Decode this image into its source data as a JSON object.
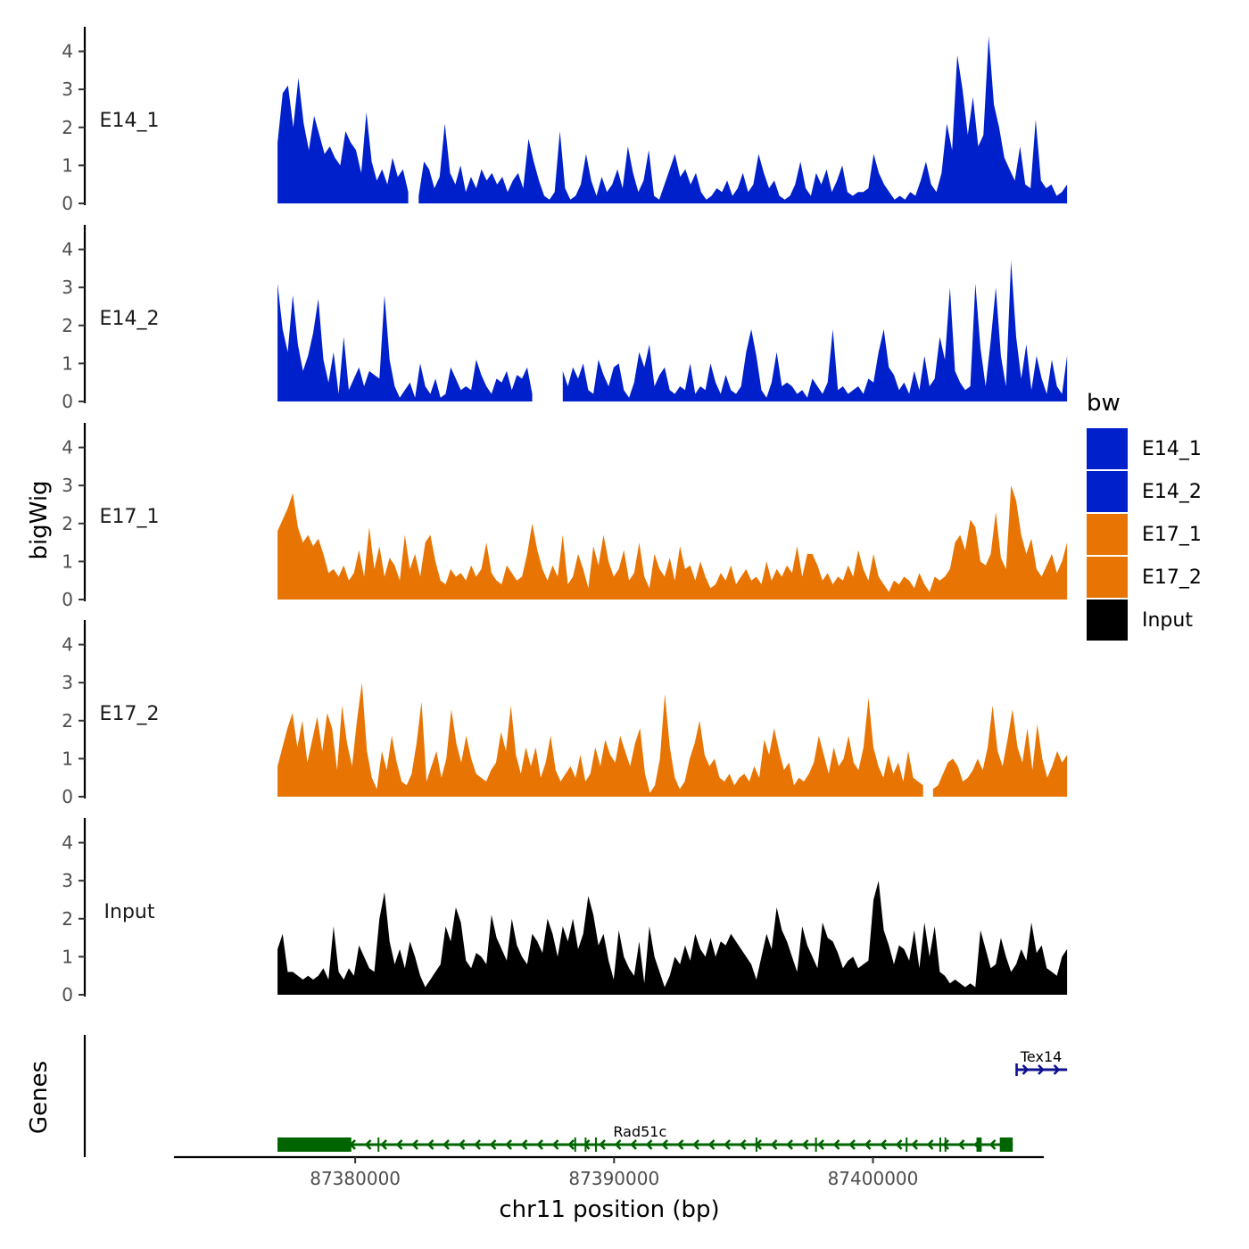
{
  "chart_data": {
    "type": "area",
    "ylabel": "bigWig",
    "xlabel": "chr11 position (bp)",
    "genes_label": "Genes",
    "ylim": [
      0,
      4.6
    ],
    "y_ticks": [
      "0",
      "1",
      "2",
      "3",
      "4"
    ],
    "xlim": [
      87373000,
      87406600
    ],
    "x_ticks": [
      {
        "value": 87380000,
        "label": "87380000"
      },
      {
        "value": 87390000,
        "label": "87390000"
      },
      {
        "value": 87400000,
        "label": "87400000"
      }
    ],
    "track_range": [
      87377000,
      87407500
    ],
    "legend": {
      "title": "bw",
      "entries": [
        {
          "name": "E14_1",
          "color": "#0020CC"
        },
        {
          "name": "E14_2",
          "color": "#0020CC"
        },
        {
          "name": "E17_1",
          "color": "#E87503"
        },
        {
          "name": "E17_2",
          "color": "#E87503"
        },
        {
          "name": "Input",
          "color": "#000000"
        }
      ]
    },
    "series": [
      {
        "name": "E14_1",
        "color": "#0020CC",
        "values": [
          1.6,
          2.9,
          3.1,
          2.0,
          3.3,
          2.1,
          1.4,
          2.3,
          1.8,
          1.3,
          1.5,
          1.2,
          1.0,
          1.9,
          1.6,
          1.4,
          0.8,
          2.4,
          1.1,
          0.6,
          0.9,
          0.5,
          1.2,
          0.7,
          0.9,
          0.3,
          null,
          0.2,
          1.1,
          0.9,
          0.4,
          0.7,
          2.1,
          0.8,
          0.5,
          1.0,
          0.3,
          0.7,
          0.4,
          0.9,
          0.6,
          0.8,
          0.5,
          0.7,
          0.3,
          0.6,
          0.8,
          0.4,
          1.7,
          1.1,
          0.6,
          0.2,
          0.1,
          0.3,
          1.9,
          0.4,
          0.1,
          0.2,
          0.5,
          1.3,
          0.6,
          0.2,
          0.7,
          0.3,
          0.5,
          0.9,
          0.4,
          1.5,
          0.8,
          0.3,
          0.6,
          1.4,
          0.2,
          0.1,
          0.5,
          0.9,
          1.3,
          0.7,
          0.9,
          0.5,
          0.8,
          0.3,
          0.1,
          0.2,
          0.4,
          0.3,
          0.6,
          0.2,
          0.4,
          0.8,
          0.3,
          0.5,
          1.3,
          0.8,
          0.4,
          0.6,
          0.2,
          0.1,
          0.2,
          0.5,
          1.1,
          0.4,
          0.2,
          0.8,
          0.5,
          0.9,
          0.3,
          0.6,
          1.0,
          0.3,
          0.2,
          0.3,
          0.3,
          0.4,
          1.3,
          0.8,
          0.5,
          0.3,
          0.1,
          0.2,
          0.1,
          0.3,
          0.2,
          0.6,
          1.1,
          0.5,
          0.3,
          0.8,
          2.1,
          1.4,
          3.9,
          3.0,
          1.8,
          2.8,
          1.5,
          1.8,
          4.4,
          2.6,
          2.0,
          1.2,
          0.9,
          0.6,
          1.5,
          0.5,
          0.4,
          2.2,
          0.6,
          0.4,
          0.5,
          0.2,
          0.3,
          0.5
        ]
      },
      {
        "name": "E14_2",
        "color": "#0020CC",
        "values": [
          3.1,
          1.9,
          1.3,
          2.8,
          1.5,
          0.8,
          1.2,
          1.8,
          2.7,
          1.1,
          0.5,
          1.3,
          0.2,
          1.7,
          0.3,
          0.6,
          0.9,
          0.4,
          0.8,
          0.7,
          0.6,
          2.8,
          1.1,
          0.4,
          0.1,
          0.3,
          0.5,
          0.1,
          1.0,
          0.4,
          0.2,
          0.6,
          0.1,
          0.2,
          0.9,
          0.6,
          0.3,
          0.4,
          0.3,
          1.1,
          0.7,
          0.4,
          0.2,
          0.6,
          0.5,
          0.8,
          0.3,
          0.7,
          0.6,
          0.9,
          0.2,
          null,
          null,
          null,
          null,
          null,
          0.8,
          0.4,
          0.9,
          0.6,
          1.0,
          0.3,
          0.2,
          1.1,
          0.7,
          0.4,
          0.9,
          1.0,
          0.3,
          0.1,
          0.5,
          1.3,
          0.9,
          1.5,
          0.4,
          0.7,
          0.9,
          0.3,
          0.2,
          0.4,
          0.3,
          1.0,
          0.2,
          0.4,
          0.3,
          1.0,
          0.5,
          0.2,
          0.7,
          0.3,
          0.2,
          0.4,
          1.3,
          1.9,
          1.2,
          0.3,
          0.1,
          0.5,
          1.3,
          0.4,
          0.5,
          0.4,
          0.2,
          0.3,
          0.1,
          0.6,
          0.4,
          0.2,
          0.5,
          1.9,
          0.3,
          0.4,
          0.2,
          0.3,
          0.4,
          0.2,
          0.6,
          0.5,
          1.3,
          1.9,
          0.9,
          0.7,
          0.3,
          0.5,
          0.2,
          0.8,
          0.3,
          1.2,
          0.4,
          0.6,
          1.7,
          1.1,
          3.0,
          0.8,
          0.5,
          0.3,
          0.4,
          3.1,
          1.4,
          0.4,
          1.6,
          3.0,
          1.2,
          0.4,
          3.7,
          1.7,
          0.6,
          1.5,
          0.3,
          1.2,
          0.6,
          0.2,
          1.1,
          0.4,
          0.2,
          1.2
        ]
      },
      {
        "name": "E17_1",
        "color": "#E87503",
        "values": [
          1.8,
          2.1,
          2.4,
          2.8,
          1.9,
          1.5,
          1.7,
          1.4,
          1.6,
          1.2,
          0.7,
          0.8,
          0.6,
          0.9,
          0.5,
          0.7,
          1.3,
          0.6,
          1.9,
          0.8,
          1.4,
          0.6,
          1.1,
          0.9,
          0.5,
          1.7,
          0.8,
          1.2,
          0.6,
          1.5,
          1.7,
          1.0,
          0.5,
          0.4,
          0.8,
          0.6,
          0.7,
          0.5,
          0.9,
          0.6,
          0.8,
          1.5,
          0.7,
          0.5,
          0.4,
          0.9,
          0.7,
          0.5,
          0.6,
          1.2,
          2.0,
          1.3,
          0.8,
          0.5,
          0.9,
          0.6,
          1.7,
          0.4,
          0.6,
          1.2,
          0.8,
          0.3,
          1.4,
          0.9,
          1.7,
          1.0,
          0.6,
          0.8,
          1.3,
          0.5,
          0.7,
          1.5,
          0.6,
          0.3,
          1.2,
          0.8,
          0.6,
          1.1,
          0.5,
          1.4,
          0.8,
          0.9,
          0.5,
          1.0,
          0.6,
          0.3,
          0.4,
          0.7,
          0.5,
          0.9,
          0.4,
          0.6,
          0.8,
          0.5,
          0.6,
          0.4,
          1.0,
          0.5,
          0.8,
          0.6,
          0.9,
          0.7,
          1.4,
          0.6,
          1.2,
          1.2,
          0.9,
          0.5,
          0.7,
          0.4,
          0.6,
          0.5,
          0.9,
          0.6,
          1.3,
          0.8,
          0.5,
          1.2,
          0.6,
          0.4,
          0.2,
          0.5,
          0.4,
          0.6,
          0.5,
          0.3,
          0.7,
          0.4,
          0.2,
          0.6,
          0.5,
          0.6,
          0.8,
          1.5,
          1.7,
          1.3,
          2.1,
          1.9,
          1.0,
          0.9,
          1.2,
          2.3,
          1.1,
          0.8,
          3.0,
          2.6,
          1.7,
          1.2,
          1.6,
          0.8,
          0.6,
          0.9,
          1.2,
          0.7,
          1.0,
          1.5
        ]
      },
      {
        "name": "E17_2",
        "color": "#E87503",
        "values": [
          0.8,
          1.3,
          1.8,
          2.2,
          1.3,
          2.0,
          0.9,
          1.5,
          2.1,
          1.2,
          2.2,
          1.8,
          0.7,
          2.4,
          1.4,
          0.8,
          2.0,
          3.0,
          1.2,
          0.5,
          0.2,
          1.2,
          0.7,
          1.6,
          0.9,
          0.4,
          0.3,
          0.6,
          1.4,
          2.5,
          0.4,
          0.8,
          1.2,
          0.5,
          1.0,
          2.3,
          1.4,
          0.9,
          1.6,
          1.0,
          0.6,
          0.5,
          0.4,
          0.7,
          0.9,
          1.7,
          1.2,
          2.4,
          1.1,
          0.6,
          1.3,
          0.8,
          1.3,
          0.5,
          0.9,
          1.6,
          0.7,
          0.4,
          0.6,
          0.8,
          0.5,
          1.1,
          0.4,
          0.6,
          1.3,
          0.8,
          1.5,
          1.1,
          0.9,
          1.6,
          1.2,
          0.8,
          1.4,
          1.8,
          0.6,
          0.1,
          0.3,
          1.0,
          2.7,
          1.3,
          0.5,
          0.2,
          0.4,
          1.0,
          1.4,
          2.0,
          1.1,
          0.8,
          1.0,
          0.5,
          0.4,
          0.6,
          0.3,
          0.5,
          0.6,
          0.4,
          0.8,
          0.5,
          1.5,
          1.1,
          1.8,
          1.2,
          0.7,
          0.9,
          0.3,
          0.5,
          0.4,
          0.6,
          0.9,
          1.6,
          1.1,
          0.6,
          1.3,
          0.8,
          1.0,
          1.6,
          0.9,
          0.7,
          1.3,
          2.6,
          1.3,
          0.8,
          0.5,
          1.1,
          0.6,
          0.9,
          0.4,
          1.2,
          0.5,
          0.4,
          0.3,
          null,
          0.2,
          0.3,
          0.6,
          0.9,
          1.0,
          0.8,
          0.4,
          0.5,
          0.7,
          1.0,
          0.7,
          1.3,
          2.4,
          1.2,
          0.8,
          1.5,
          2.3,
          1.3,
          0.9,
          1.8,
          0.7,
          1.9,
          1.0,
          0.5,
          0.8,
          1.2,
          0.9,
          1.1
        ]
      },
      {
        "name": "Input",
        "color": "#000000",
        "values": [
          1.2,
          1.6,
          0.6,
          0.6,
          0.5,
          0.4,
          0.5,
          0.4,
          0.5,
          0.7,
          0.4,
          1.8,
          0.6,
          0.4,
          0.7,
          0.5,
          1.3,
          1.0,
          0.7,
          0.6,
          2.0,
          2.7,
          1.4,
          0.8,
          1.2,
          0.7,
          1.4,
          1.0,
          0.5,
          0.2,
          0.4,
          0.6,
          0.8,
          1.8,
          1.4,
          2.3,
          1.9,
          0.9,
          0.7,
          1.1,
          1.0,
          0.8,
          2.1,
          1.5,
          1.2,
          0.9,
          2.0,
          1.3,
          1.0,
          0.8,
          1.6,
          1.4,
          1.1,
          2.0,
          1.6,
          1.0,
          1.8,
          1.4,
          2.0,
          1.2,
          1.6,
          2.6,
          2.1,
          1.3,
          1.6,
          0.9,
          0.4,
          1.7,
          1.0,
          0.7,
          0.5,
          1.4,
          0.3,
          1.8,
          1.0,
          0.6,
          0.2,
          0.5,
          1.0,
          0.8,
          1.3,
          0.9,
          1.6,
          1.2,
          1.0,
          1.5,
          1.0,
          1.4,
          1.3,
          1.6,
          1.4,
          1.2,
          1.0,
          0.8,
          0.4,
          1.0,
          1.6,
          1.2,
          2.3,
          1.7,
          1.4,
          1.0,
          0.6,
          1.8,
          1.3,
          1.0,
          0.7,
          1.9,
          1.5,
          1.4,
          1.1,
          0.7,
          0.9,
          1.0,
          0.7,
          0.8,
          0.9,
          2.5,
          3.0,
          1.7,
          1.3,
          0.8,
          1.3,
          1.2,
          0.9,
          1.7,
          0.7,
          1.9,
          1.0,
          1.8,
          0.6,
          0.5,
          0.3,
          0.4,
          0.3,
          0.2,
          0.3,
          0.2,
          1.7,
          1.2,
          0.7,
          0.8,
          1.5,
          1.0,
          0.6,
          0.8,
          1.2,
          0.9,
          1.9,
          1.1,
          1.3,
          0.7,
          0.6,
          0.5,
          1.0,
          1.2
        ]
      }
    ],
    "genes": [
      {
        "name": "Rad51c",
        "color": "#006400",
        "strand": "-",
        "start": 87377000,
        "end": 87405400,
        "label_pos": 87391000,
        "exons": [
          [
            87377000,
            87379850
          ],
          [
            87404000,
            87404200
          ],
          [
            87404900,
            87405400
          ]
        ],
        "exon_ticks": [
          87380900,
          87388500,
          87388900,
          87389300,
          87395500,
          87397800,
          87401300,
          87402600,
          87402800
        ]
      },
      {
        "name": "Tex14",
        "color": "#101090",
        "strand": "+",
        "start": 87405550,
        "end": 87407500,
        "label_pos": 87406500,
        "exons": [],
        "exon_ticks": []
      }
    ]
  }
}
